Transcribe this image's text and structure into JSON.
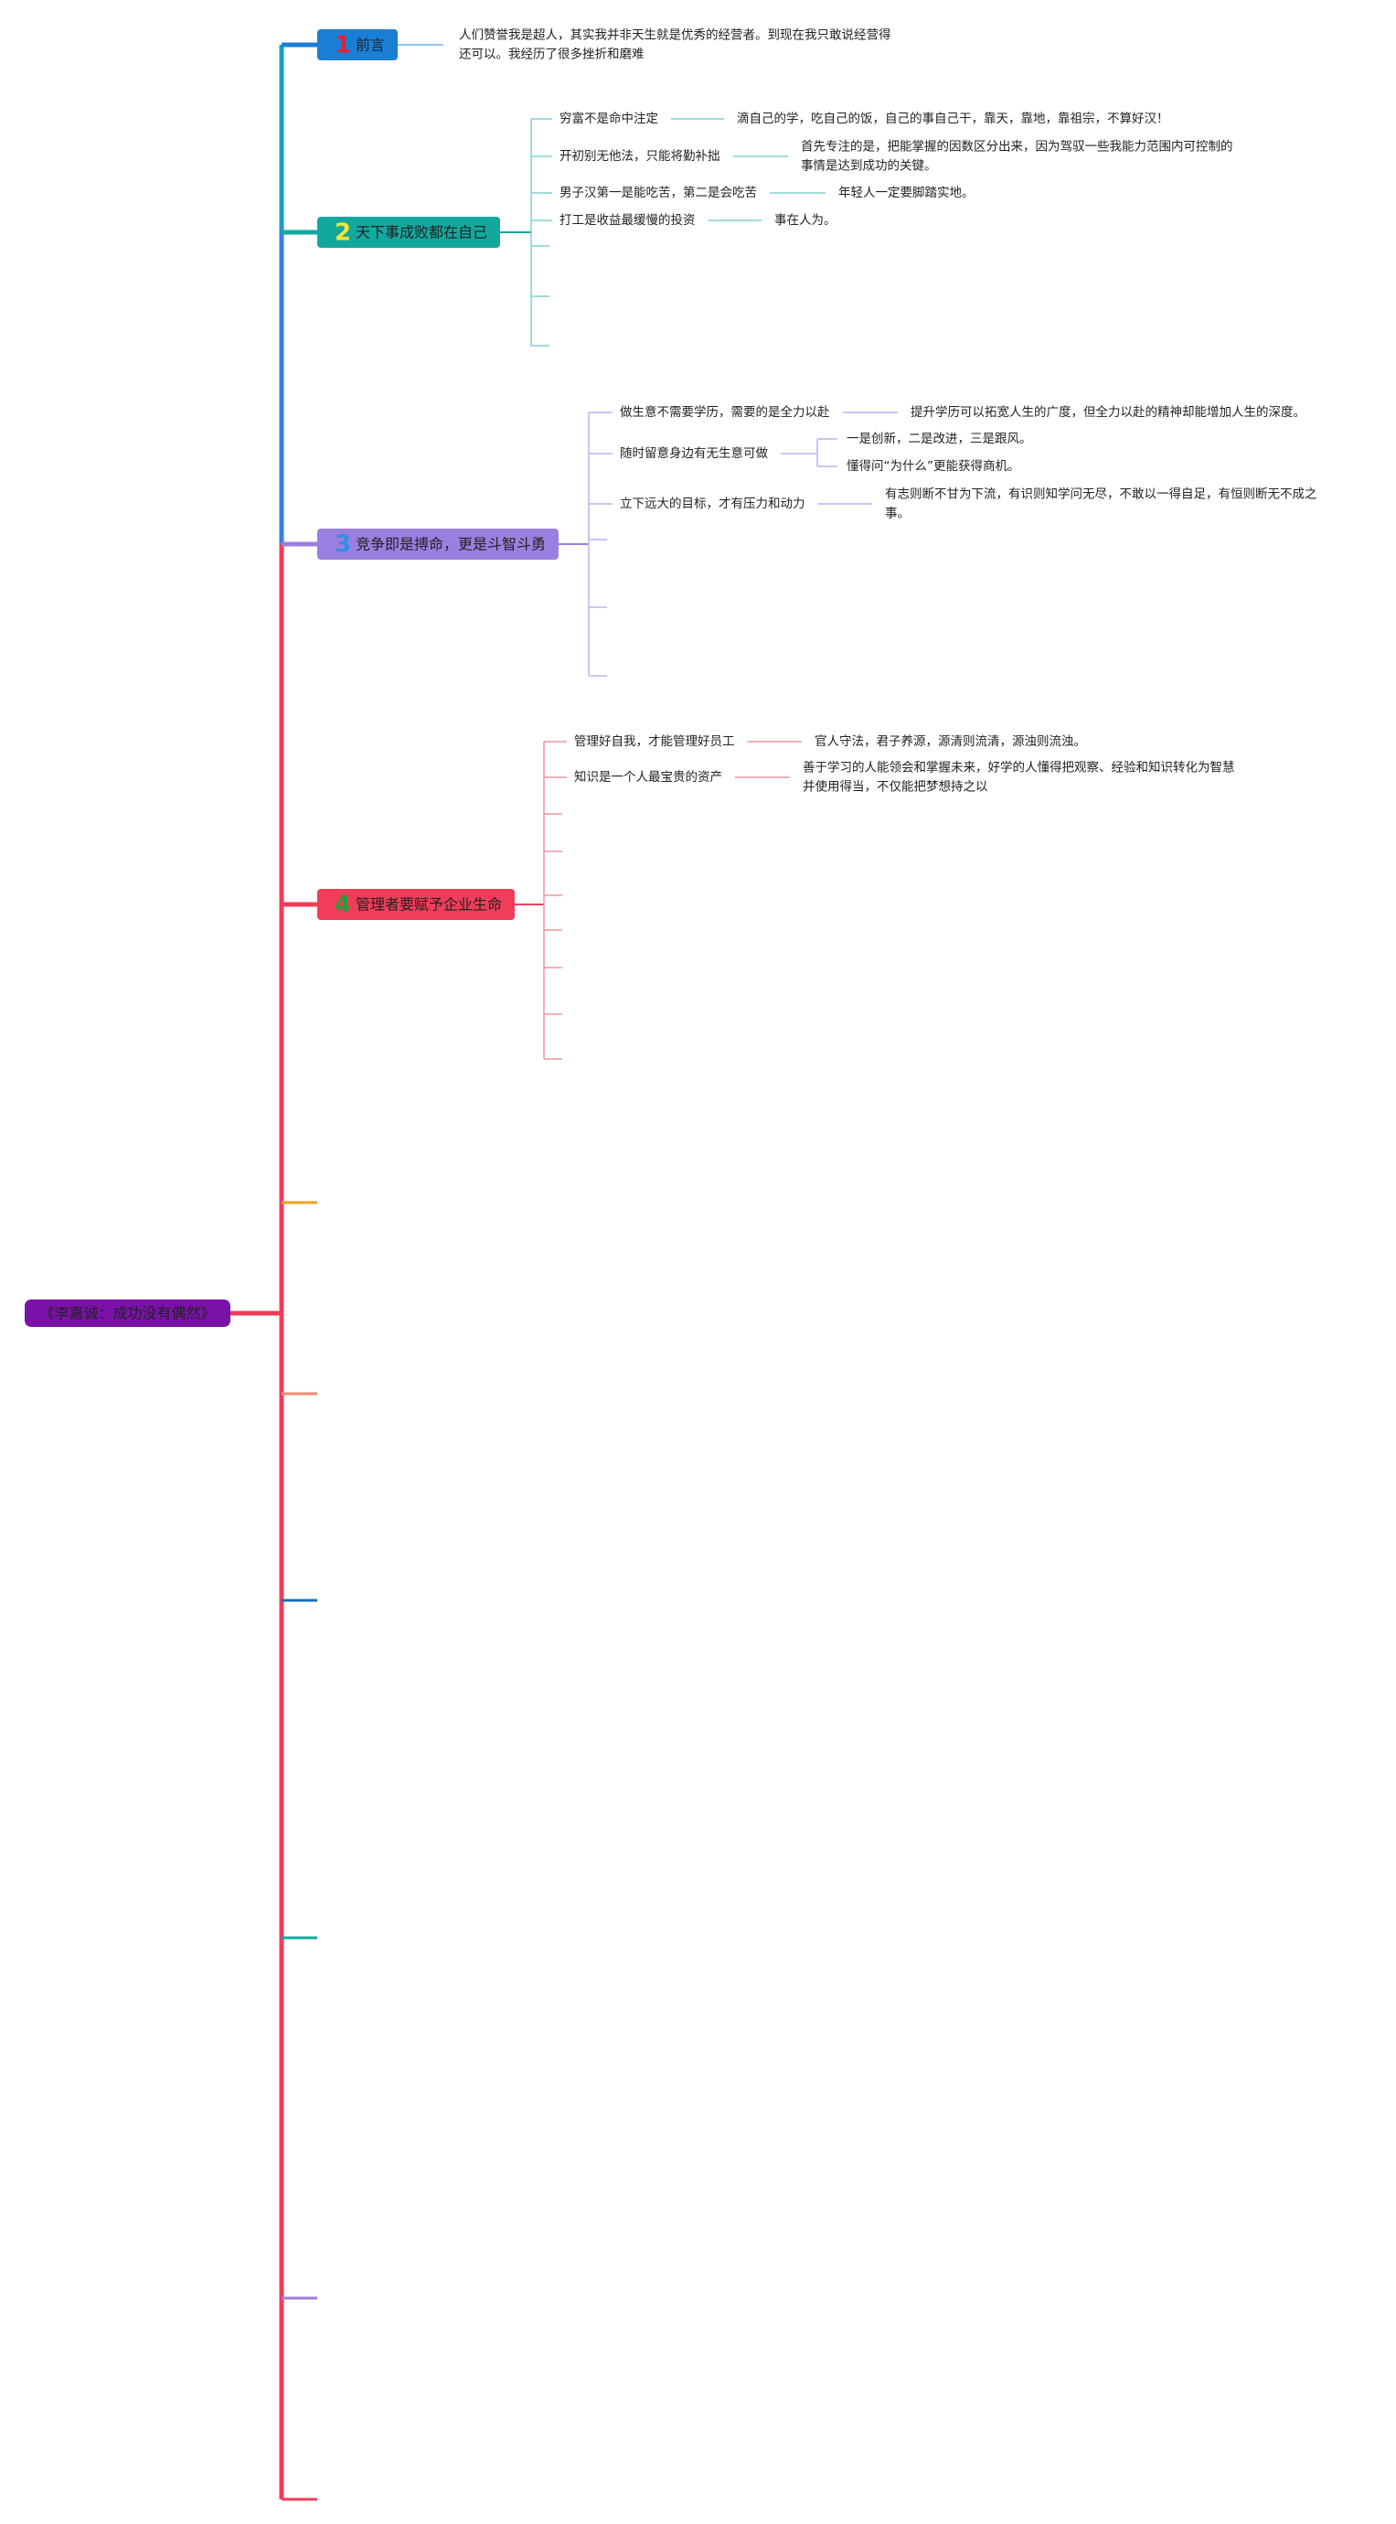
{
  "root": "《李嘉诚：成功没有偶然》",
  "branches": [
    {
      "number": "1",
      "label": "前言",
      "children": [
        {
          "label": null,
          "children": [
            [
              "人们赞誉我是超人，其实我并非天生就是优秀的经营者。到现在我只敢说经营得",
              "还可以。我经历了很多挫折和磨难"
            ]
          ]
        }
      ]
    },
    {
      "number": "2",
      "label": "天下事成败都在自己",
      "children": [
        {
          "label": "穷富不是命中注定",
          "children": [
            [
              "滴自己的学，吃自己的饭，自己的事自己干，靠天，靠地，靠祖宗，不算好汉！"
            ]
          ]
        },
        {
          "label": "开初别无他法，只能将勤补拙",
          "children": [
            [
              "首先专注的是，把能掌握的因数区分出来，因为驾驭一些我能力范围内可控制的",
              "事情是达到成功的关键。"
            ]
          ]
        },
        {
          "label": "男子汉第一是能吃苦，第二是会吃苦",
          "children": [
            [
              "年轻人一定要脚踏实地。"
            ]
          ]
        },
        {
          "label": "打工是收益最缓慢的投资",
          "children": [
            [
              "事在人为。"
            ]
          ]
        }
      ]
    },
    {
      "number": "3",
      "label": "竞争即是搏命，更是斗智斗勇",
      "children": [
        {
          "label": "做生意不需要学历，需要的是全力以赴",
          "children": [
            [
              "提升学历可以拓宽人生的广度，但全力以赴的精神却能增加人生的深度。"
            ]
          ]
        },
        {
          "label": "随时留意身边有无生意可做",
          "children": [
            [
              "一是创新，二是改进，三是跟风。"
            ],
            [
              "懂得问“为什么”更能获得商机。"
            ]
          ]
        },
        {
          "label": "立下远大的目标，才有压力和动力",
          "children": [
            [
              "有志则断不甘为下流，有识则知学问无尽，不敢以一得自足，有恒则断无不成之",
              "事。"
            ]
          ]
        }
      ]
    },
    {
      "number": "4",
      "label": "管理者要赋予企业生命",
      "children": [
        {
          "label": "管理好自我，才能管理好员工",
          "children": [
            [
              "官人守法，君子养源，源清则流清，源浊则流浊。"
            ]
          ]
        },
        {
          "label": "知识是一个人最宝贵的资产",
          "children": [
            [
              "善于学习的人能领会和掌握未来，好学的人懂得把观察、经验和知识转化为智慧",
              "并使用得当，不仅能把梦想持之以"
            ]
          ]
        }
      ]
    }
  ]
}
